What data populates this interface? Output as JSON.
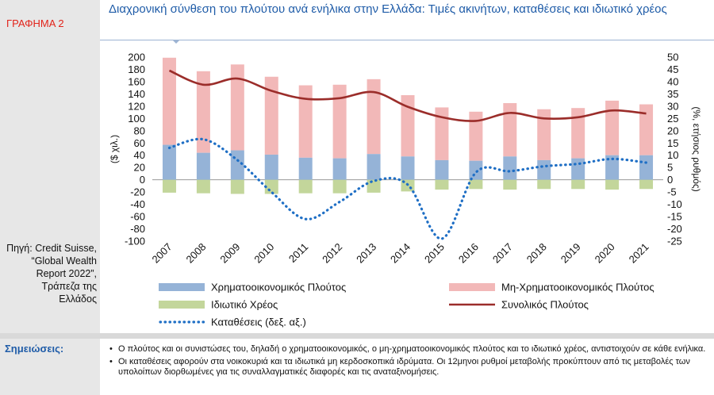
{
  "figure_label": "ΓΡΑΦΗΜΑ 2",
  "title": "Διαχρονική σύνθεση του πλούτου ανά ενήλικα στην Ελλάδα: Τιμές ακινήτων, καταθέσεις και ιδιωτικό χρέος",
  "source": "Πηγή: Credit Suisse, “Global Wealth Report 2022”, Τράπεζα της Ελλάδος",
  "notes_label": "Σημειώσεις:",
  "notes": [
    "Ο πλούτος και οι συνιστώσες του, δηλαδή ο χρηματοοικονομικός, ο μη-χρηματοοικονομικός πλούτος και το ιδιωτικό χρέος, αντιστοιχούν σε κάθε ενήλικα.",
    "Οι καταθέσεις αφορούν στα νοικοκυριά και τα ιδιωτικά μη κερδοσκοπικά ιδρύματα. Οι 12μηνοι ρυθμοί μεταβολής προκύπτουν από τις μεταβολές των υπολοίπων διορθωμένες για τις συναλλαγματικές διαφορές και τις αναταξινομήσεις."
  ],
  "chart_data": {
    "type": "bar",
    "categories": [
      "2007",
      "2008",
      "2009",
      "2010",
      "2011",
      "2012",
      "2013",
      "2014",
      "2015",
      "2016",
      "2017",
      "2018",
      "2019",
      "2020",
      "2021"
    ],
    "ylabel": "($ χιλ.)",
    "y2label": "(%, ετήσιος ρυθμός)",
    "ylim": [
      -100,
      200
    ],
    "y2lim": [
      -25,
      50
    ],
    "yticks": [
      "200",
      "180",
      "160",
      "140",
      "120",
      "100",
      "80",
      "60",
      "40",
      "20",
      "0",
      "-20",
      "-40",
      "-60",
      "-80",
      "-100"
    ],
    "y2ticks": [
      "50",
      "45",
      "40",
      "35",
      "30",
      "25",
      "20",
      "15",
      "10",
      "5",
      "0",
      "-5",
      "-10",
      "-15",
      "-20",
      "-25"
    ],
    "series": [
      {
        "name": "Χρηματοοικονομικός Πλούτος",
        "kind": "bar",
        "color": "#95b3d7",
        "values": [
          57,
          44,
          48,
          41,
          36,
          35,
          42,
          38,
          32,
          31,
          38,
          32,
          35,
          40,
          40
        ]
      },
      {
        "name": "Μη-Χρηματοοικονομικός Πλούτος",
        "kind": "bar",
        "color": "#f2b8b8",
        "values": [
          142,
          133,
          140,
          127,
          118,
          120,
          122,
          100,
          86,
          80,
          87,
          83,
          82,
          89,
          83
        ]
      },
      {
        "name": "Ιδιωτικό Χρέος",
        "kind": "bar",
        "color": "#c3d69b",
        "values": [
          -21,
          -22,
          -23,
          -23,
          -22,
          -22,
          -21,
          -19,
          -16,
          -15,
          -16,
          -15,
          -15,
          -16,
          -15
        ]
      },
      {
        "name": "Συνολικός Πλούτος",
        "kind": "line",
        "color": "#9b2d2a",
        "values": [
          178,
          155,
          165,
          145,
          132,
          133,
          143,
          119,
          102,
          96,
          109,
          100,
          102,
          113,
          108
        ]
      },
      {
        "name": "Καταθέσεις (δεξ. αξ.)",
        "kind": "dotted",
        "axis": "right",
        "color": "#1f6fc5",
        "values": [
          13,
          16.5,
          8,
          -5,
          -16,
          -9,
          -0.5,
          -2,
          -24,
          3,
          3.5,
          5.5,
          6.5,
          8.5,
          7
        ]
      }
    ],
    "legend_position": "bottom"
  }
}
